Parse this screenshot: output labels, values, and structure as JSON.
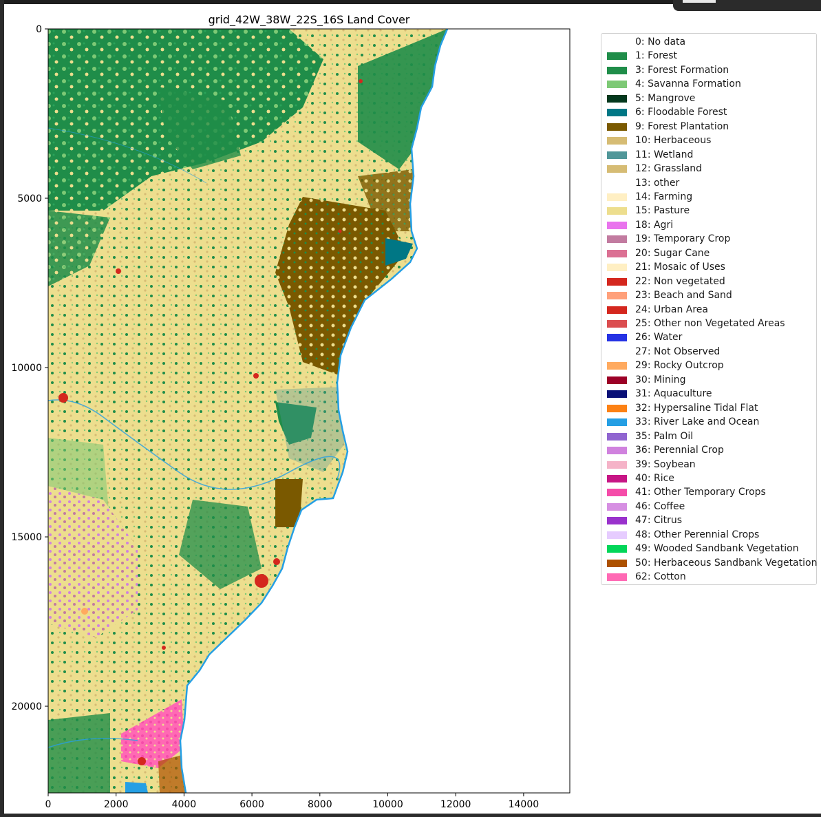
{
  "chart_data": {
    "type": "heatmap",
    "title": "grid_42W_38W_22S_16S Land Cover",
    "xlim": [
      0,
      15360
    ],
    "ylim": [
      22560,
      0
    ],
    "xticks": [
      0,
      2000,
      4000,
      6000,
      8000,
      10000,
      12000,
      14000
    ],
    "yticks": [
      0,
      5000,
      10000,
      15000,
      20000
    ],
    "legend_position": "right",
    "legend": [
      {
        "label": "0: No data",
        "color": "#ffffff"
      },
      {
        "label": "1: Forest",
        "color": "#1f8d49"
      },
      {
        "label": "3: Forest Formation",
        "color": "#1f8d49"
      },
      {
        "label": "4: Savanna Formation",
        "color": "#7dc975"
      },
      {
        "label": "5: Mangrove",
        "color": "#04381d"
      },
      {
        "label": "6: Floodable Forest",
        "color": "#007785"
      },
      {
        "label": "9: Forest Plantation",
        "color": "#7a5900"
      },
      {
        "label": "10: Herbaceous",
        "color": "#d6bc74"
      },
      {
        "label": "11: Wetland",
        "color": "#519799"
      },
      {
        "label": "12: Grassland",
        "color": "#d6bc74"
      },
      {
        "label": "13: other",
        "color": "#ffffff"
      },
      {
        "label": "14: Farming",
        "color": "#ffefc3"
      },
      {
        "label": "15: Pasture",
        "color": "#edde8e"
      },
      {
        "label": "18: Agri",
        "color": "#e974ed"
      },
      {
        "label": "19: Temporary Crop",
        "color": "#c27ba0"
      },
      {
        "label": "20: Sugar Cane",
        "color": "#db7093"
      },
      {
        "label": "21: Mosaic of Uses",
        "color": "#ffefc3"
      },
      {
        "label": "22: Non vegetated",
        "color": "#d4271e"
      },
      {
        "label": "23: Beach and Sand",
        "color": "#ffa07a"
      },
      {
        "label": "24: Urban Area",
        "color": "#d4271e"
      },
      {
        "label": "25: Other non Vegetated Areas",
        "color": "#db4d4f"
      },
      {
        "label": "26: Water",
        "color": "#2532e4"
      },
      {
        "label": "27: Not Observed",
        "color": "#ffffff"
      },
      {
        "label": "29: Rocky Outcrop",
        "color": "#ffaa5f"
      },
      {
        "label": "30: Mining",
        "color": "#9c0027"
      },
      {
        "label": "31: Aquaculture",
        "color": "#091077"
      },
      {
        "label": "32: Hypersaline Tidal Flat",
        "color": "#fc8114"
      },
      {
        "label": "33: River Lake and Ocean",
        "color": "#259fe4"
      },
      {
        "label": "35: Palm Oil",
        "color": "#9065d0"
      },
      {
        "label": "36: Perennial Crop",
        "color": "#d082de"
      },
      {
        "label": "39: Soybean",
        "color": "#f5b3c8"
      },
      {
        "label": "40: Rice",
        "color": "#c71585"
      },
      {
        "label": "41: Other Temporary Crops",
        "color": "#f54ca9"
      },
      {
        "label": "46: Coffee",
        "color": "#d68fe2"
      },
      {
        "label": "47: Citrus",
        "color": "#9932cc"
      },
      {
        "label": "48: Other Perennial Crops",
        "color": "#e6ccff"
      },
      {
        "label": "49: Wooded Sandbank Vegetation",
        "color": "#02d659"
      },
      {
        "label": "50: Herbaceous Sandbank Vegetation",
        "color": "#ad5100"
      },
      {
        "label": "62: Cotton",
        "color": "#ff69b4"
      }
    ]
  }
}
